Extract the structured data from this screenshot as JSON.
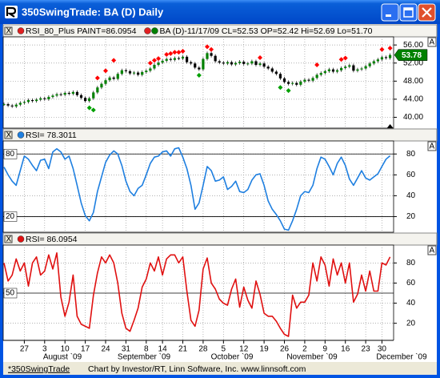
{
  "window": {
    "title": "350SwingTrade: BA (D) Daily"
  },
  "close_button": "X",
  "scale_button": "A",
  "status_bar": {
    "tab": "*350SwingTrade",
    "text": "Chart by Investor/RT, Linn Software, Inc. www.linnsoft.com"
  },
  "chart_data": [
    {
      "type": "candlestick",
      "legend": [
        {
          "name": "RSI_80_Plus PAINT=86.0954",
          "color": "#e02020"
        },
        {
          "name": "BA (D)-11/17/09 CL=52.53 OP=52.42 Hi=52.69 Lo=51.70",
          "color": "#e02020"
        }
      ],
      "up_color": "#008000",
      "down_color": "#000000",
      "values": [
        42.9,
        42.6,
        42.4,
        42.8,
        43.2,
        43.4,
        43.8,
        43.6,
        43.9,
        44.2,
        44.0,
        44.5,
        44.8,
        45.1,
        45.0,
        45.4,
        45.2,
        45.6,
        44.9,
        44.3,
        43.6,
        44.2,
        45.5,
        46.6,
        47.4,
        48.2,
        48.8,
        48.5,
        49.6,
        50.4,
        50.2,
        49.7,
        49.9,
        49.4,
        50.0,
        50.3,
        50.8,
        51.6,
        52.1,
        52.5,
        52.9,
        52.7,
        53.1,
        53.0,
        53.4,
        52.2,
        51.9,
        51.0,
        50.6,
        52.9,
        54.2,
        53.6,
        52.4,
        52.1,
        51.9,
        52.2,
        51.7,
        52.0,
        52.3,
        51.8,
        51.9,
        52.4,
        51.6,
        51.9,
        51.2,
        50.8,
        50.1,
        49.6,
        48.6,
        47.8,
        47.4,
        47.6,
        47.2,
        47.9,
        48.3,
        48.1,
        48.7,
        49.4,
        49.8,
        50.2,
        50.6,
        50.1,
        50.4,
        50.9,
        51.2,
        51.5,
        50.3,
        50.6,
        50.8,
        51.3,
        51.9,
        52.4,
        52.8,
        53.3,
        53.1,
        53.78
      ],
      "markers_up": {
        "color": "#ff0000",
        "values": [
          null,
          null,
          null,
          null,
          null,
          null,
          null,
          null,
          null,
          null,
          null,
          null,
          null,
          null,
          null,
          null,
          null,
          null,
          null,
          null,
          null,
          null,
          null,
          48.7,
          null,
          50.3,
          null,
          52.6,
          null,
          null,
          null,
          null,
          null,
          null,
          null,
          null,
          52.0,
          52.6,
          53.0,
          null,
          53.9,
          54.1,
          54.4,
          54.4,
          54.6,
          null,
          null,
          null,
          null,
          null,
          55.6,
          55.0,
          null,
          null,
          null,
          null,
          null,
          null,
          null,
          null,
          null,
          null,
          null,
          53.2,
          null,
          null,
          null,
          null,
          null,
          null,
          null,
          null,
          null,
          null,
          null,
          null,
          null,
          51.6,
          null,
          null,
          null,
          null,
          null,
          52.8,
          53.1,
          null,
          null,
          null,
          null,
          null,
          null,
          null,
          null,
          55.0,
          null,
          55.3
        ]
      },
      "markers_down": {
        "color": "#00a000",
        "values": [
          null,
          null,
          null,
          null,
          null,
          null,
          null,
          null,
          null,
          null,
          null,
          null,
          null,
          null,
          null,
          null,
          null,
          null,
          null,
          null,
          null,
          42.1,
          41.6,
          null,
          null,
          null,
          null,
          null,
          null,
          null,
          null,
          null,
          null,
          null,
          null,
          null,
          null,
          null,
          null,
          null,
          null,
          null,
          null,
          null,
          null,
          null,
          null,
          null,
          49.3,
          null,
          null,
          null,
          null,
          null,
          null,
          null,
          null,
          null,
          null,
          null,
          null,
          null,
          null,
          null,
          null,
          null,
          null,
          null,
          46.6,
          null,
          45.9,
          null,
          null,
          null,
          null,
          null,
          null,
          null,
          null,
          null,
          null,
          null,
          null,
          null,
          null,
          null,
          null,
          null,
          null,
          null,
          null,
          null,
          null,
          null,
          null,
          null
        ]
      },
      "last_color": "#008000",
      "ylim": [
        37.6,
        57.8
      ],
      "yticks": [
        {
          "value": 40,
          "label": "40.00"
        },
        {
          "value": 44,
          "label": "44.00"
        },
        {
          "value": 48,
          "label": "48.00"
        },
        {
          "value": 52,
          "label": "52.00"
        },
        {
          "value": 56,
          "label": "56.00"
        }
      ],
      "grid": true
    },
    {
      "type": "line",
      "series": [
        {
          "name": "RSI= 78.3011",
          "color": "#1e7fe0",
          "values": [
            67.5,
            60,
            54,
            50,
            64,
            78,
            75,
            69,
            64,
            74,
            75,
            66,
            82,
            85,
            82,
            75,
            78,
            66,
            50,
            33,
            21,
            16,
            24,
            44,
            58,
            72,
            79,
            83,
            80,
            69,
            54,
            44,
            40,
            47,
            50,
            60,
            71,
            77,
            78,
            82,
            83,
            78,
            85,
            86,
            77,
            66,
            50,
            27,
            33,
            50,
            68,
            64,
            54,
            55,
            58,
            46,
            49,
            54,
            44,
            43,
            46,
            55,
            60,
            61,
            50,
            35,
            27,
            22,
            16,
            8,
            7,
            16,
            27,
            40,
            44,
            43,
            50,
            66,
            77,
            75,
            68,
            60,
            71,
            77,
            69,
            56,
            50,
            57,
            64,
            57,
            55,
            58,
            61,
            68,
            75,
            78.3
          ]
        }
      ],
      "hlines": [
        80,
        20
      ],
      "ylim": [
        5,
        92.5
      ],
      "yticks": [
        20,
        40,
        60,
        80
      ],
      "grid": true
    },
    {
      "type": "line",
      "series": [
        {
          "name": "RSI= 86.0954",
          "color": "#e01010",
          "values": [
            80,
            62,
            68,
            84,
            72,
            80,
            57,
            80,
            86,
            68,
            72,
            88,
            74,
            90,
            46,
            27,
            41,
            68,
            27,
            19,
            17,
            15,
            48,
            70,
            86,
            80,
            88,
            80,
            60,
            30,
            15,
            12,
            23,
            35,
            56,
            64,
            80,
            72,
            86,
            68,
            84,
            88,
            88,
            80,
            86,
            52,
            23,
            17,
            33,
            74,
            85,
            60,
            54,
            44,
            40,
            38,
            54,
            64,
            36,
            56,
            43,
            35,
            62,
            49,
            30,
            27,
            27,
            22,
            15,
            9,
            7,
            48,
            35,
            41,
            41,
            48,
            80,
            62,
            86,
            78,
            57,
            84,
            68,
            80,
            60,
            80,
            41,
            49,
            68,
            52,
            72,
            52,
            52,
            80,
            78,
            86
          ]
        }
      ],
      "hlines": [
        50
      ],
      "ylim": [
        3,
        97.8
      ],
      "yticks": [
        20,
        40,
        60,
        80
      ],
      "grid": true,
      "categories": [
        null,
        null,
        null,
        null,
        null,
        "27",
        null,
        null,
        null,
        null,
        "3",
        null,
        null,
        null,
        null,
        "10",
        null,
        null,
        null,
        null,
        "17",
        null,
        null,
        null,
        null,
        "24",
        null,
        null,
        null,
        null,
        "31",
        null,
        null,
        null,
        null,
        "8",
        null,
        null,
        null,
        "14",
        null,
        null,
        null,
        null,
        "21",
        null,
        null,
        null,
        null,
        "28",
        null,
        null,
        null,
        null,
        "5",
        null,
        null,
        null,
        null,
        "12",
        null,
        null,
        null,
        null,
        "19",
        null,
        null,
        null,
        null,
        "26",
        null,
        null,
        null,
        null,
        "2",
        null,
        null,
        null,
        null,
        "9",
        null,
        null,
        null,
        null,
        "16",
        null,
        null,
        null,
        null,
        "23",
        null,
        null,
        null,
        "30",
        null,
        null
      ],
      "months": [
        "August `09",
        "September `09",
        "October `09",
        "November `09",
        "December `09"
      ]
    }
  ]
}
